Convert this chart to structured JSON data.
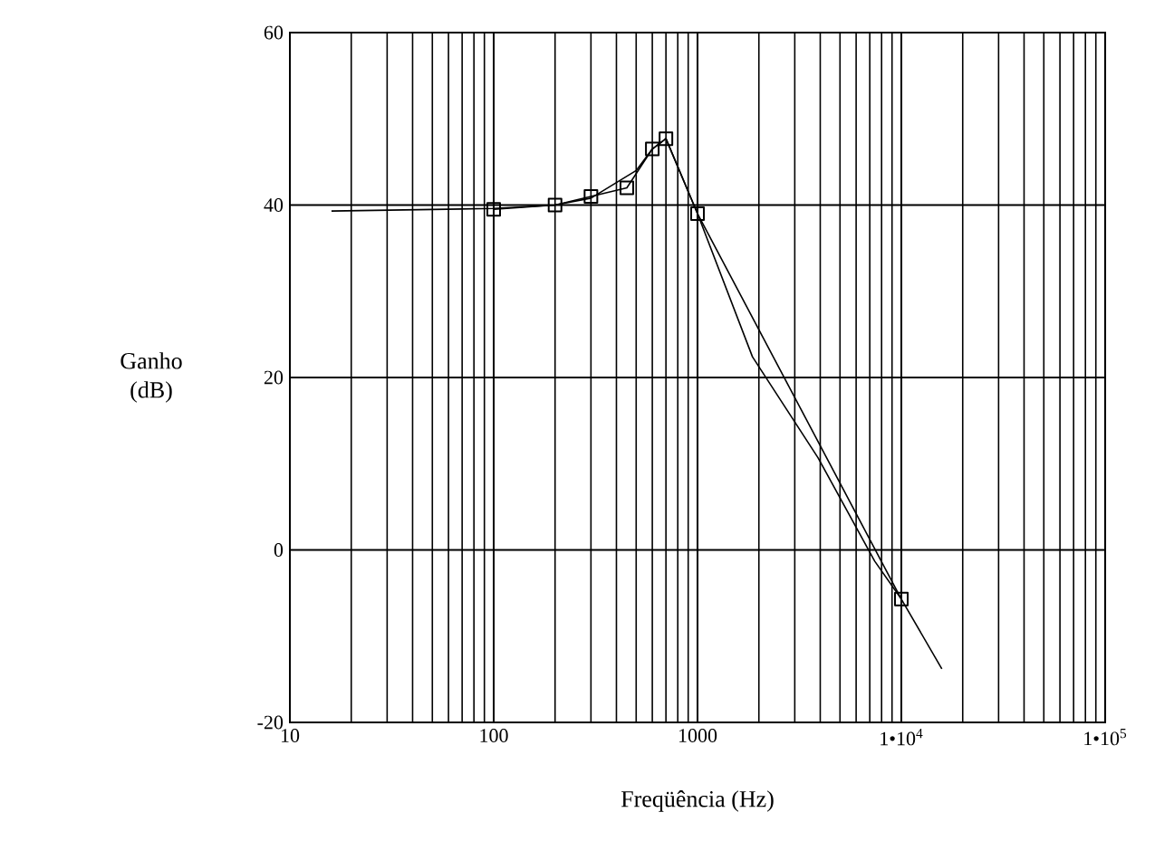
{
  "chart_data": {
    "type": "line",
    "xlabel": "Freqüência (Hz)",
    "ylabel": "Ganho (dB)",
    "log": "x",
    "grid": true,
    "xlim": [
      10,
      100000
    ],
    "ylim": [
      -20,
      60
    ],
    "xticks": [
      10,
      100,
      1000,
      {
        "value": 10000,
        "label": "1•10$^{4}$"
      },
      {
        "value": 100000,
        "label": "1•10$^{5}$"
      }
    ],
    "yticks": [
      -20,
      0,
      20,
      40,
      60
    ],
    "series": [
      {
        "color": "#000000",
        "marker": "square",
        "line_style": "solid",
        "x": [
          100,
          200,
          300,
          450,
          600,
          700,
          1000,
          10000
        ],
        "values": [
          39.5,
          40,
          41,
          42,
          46.5,
          47.7,
          39,
          -5.7
        ]
      },
      {
        "color": "#000000",
        "marker": "none",
        "line_style": "solid",
        "x": [
          16,
          100,
          200,
          300,
          500,
          600,
          700,
          1000,
          1860,
          3900,
          7400,
          10000,
          15800
        ],
        "values": [
          39.3,
          39.6,
          40,
          40.8,
          44,
          46.5,
          47.7,
          39,
          22.4,
          10.7,
          -1.3,
          -5.7,
          -13.8
        ]
      }
    ]
  }
}
